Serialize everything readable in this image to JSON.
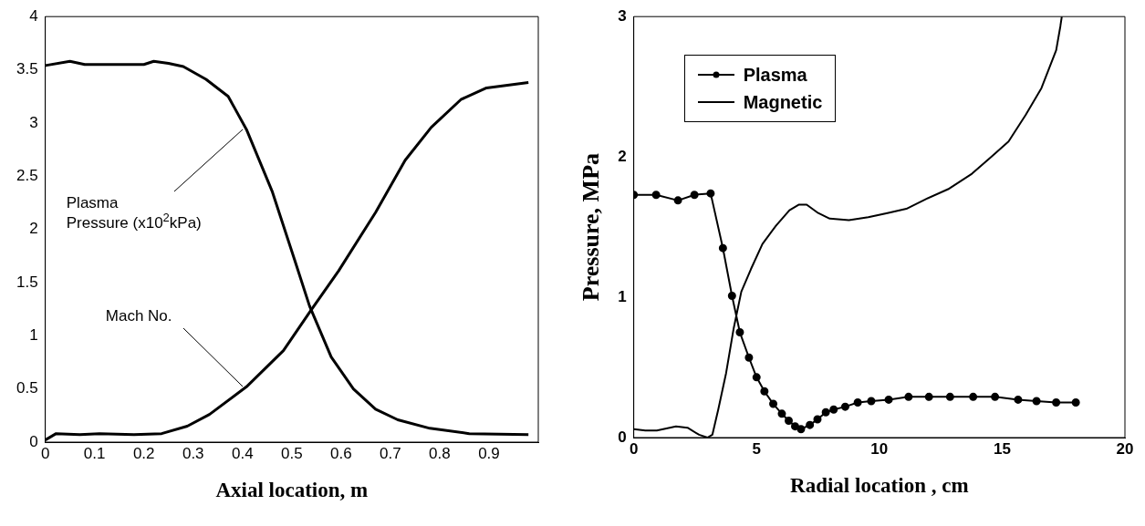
{
  "chart_data": [
    {
      "type": "line",
      "xlabel": "Axial location, m",
      "xlim": [
        0,
        1
      ],
      "xticks": [
        0,
        0.1,
        0.2,
        0.3,
        0.4,
        0.5,
        0.6,
        0.7,
        0.8,
        0.9
      ],
      "ylim": [
        0,
        4
      ],
      "yticks": [
        0,
        0.5,
        1,
        1.5,
        2,
        2.5,
        3,
        3.5,
        4
      ],
      "grid": false,
      "legend": false,
      "marker": "none",
      "line_style": "solid",
      "annotations": [
        {
          "text": "Plasma Pressure (x10$^{2}$kPa)",
          "x": 0.4,
          "y": 2.94
        },
        {
          "text": "Mach No.",
          "x": 0.4,
          "y": 0.52
        }
      ],
      "series": [
        {
          "color": "#000000",
          "x": [
            0,
            0.05,
            0.08,
            0.15,
            0.2,
            0.22,
            0.25,
            0.28,
            0.326,
            0.371,
            0.408,
            0.46,
            0.506,
            0.536,
            0.58,
            0.625,
            0.67,
            0.715,
            0.78,
            0.86,
            0.98
          ],
          "values": [
            3.54,
            3.58,
            3.55,
            3.55,
            3.55,
            3.58,
            3.56,
            3.53,
            3.41,
            3.25,
            2.94,
            2.36,
            1.71,
            1.28,
            0.8,
            0.5,
            0.31,
            0.21,
            0.13,
            0.08,
            0.07
          ]
        },
        {
          "color": "#000000",
          "x": [
            0,
            0.022,
            0.07,
            0.11,
            0.18,
            0.236,
            0.288,
            0.333,
            0.408,
            0.483,
            0.536,
            0.595,
            0.67,
            0.73,
            0.783,
            0.843,
            0.895,
            0.98
          ],
          "values": [
            0.02,
            0.08,
            0.07,
            0.08,
            0.07,
            0.08,
            0.15,
            0.26,
            0.52,
            0.86,
            1.22,
            1.61,
            2.16,
            2.65,
            2.96,
            3.22,
            3.33,
            3.38
          ]
        }
      ]
    },
    {
      "type": "line",
      "xlabel": "Radial location , cm",
      "ylabel": "Pressure, MPa",
      "xlim": [
        0,
        20
      ],
      "xticks": [
        0,
        5,
        10,
        15,
        20
      ],
      "ylim": [
        0,
        3
      ],
      "yticks": [
        0,
        1,
        2,
        3
      ],
      "grid": false,
      "legend": "top left",
      "line_style": "solid",
      "series": [
        {
          "name": "Plasma",
          "color": "#000000",
          "marker": "circle",
          "x": [
            0,
            0.91,
            1.8,
            2.47,
            3.13,
            3.63,
            4.0,
            4.32,
            4.69,
            5.0,
            5.32,
            5.68,
            6.03,
            6.31,
            6.57,
            6.81,
            7.17,
            7.48,
            7.82,
            8.14,
            8.61,
            9.12,
            9.67,
            10.38,
            11.19,
            12.02,
            12.88,
            13.82,
            14.71,
            15.65,
            16.4,
            17.2,
            18.0
          ],
          "values": [
            1.73,
            1.73,
            1.69,
            1.73,
            1.74,
            1.35,
            1.01,
            0.75,
            0.57,
            0.43,
            0.33,
            0.24,
            0.17,
            0.12,
            0.08,
            0.06,
            0.09,
            0.13,
            0.18,
            0.2,
            0.22,
            0.25,
            0.26,
            0.27,
            0.29,
            0.29,
            0.29,
            0.29,
            0.29,
            0.27,
            0.26,
            0.25,
            0.25
          ]
        },
        {
          "name": "Magnetic",
          "color": "#000000",
          "marker": "none",
          "x": [
            0,
            0.47,
            0.94,
            1.72,
            2.19,
            2.66,
            3.0,
            3.2,
            3.44,
            3.76,
            4.07,
            4.38,
            4.77,
            5.24,
            5.79,
            6.34,
            6.73,
            7.04,
            7.51,
            7.98,
            8.76,
            9.55,
            10.33,
            11.1,
            11.9,
            12.8,
            13.77,
            14.55,
            15.26,
            15.96,
            16.6,
            17.2,
            17.37,
            17.43
          ],
          "values": [
            0.06,
            0.05,
            0.05,
            0.08,
            0.07,
            0.02,
            0,
            0.02,
            0.2,
            0.46,
            0.78,
            1.04,
            1.2,
            1.38,
            1.51,
            1.62,
            1.66,
            1.66,
            1.6,
            1.56,
            1.55,
            1.57,
            1.6,
            1.63,
            1.7,
            1.77,
            1.88,
            2.0,
            2.11,
            2.3,
            2.49,
            2.76,
            2.93,
            3.0
          ]
        }
      ]
    }
  ]
}
